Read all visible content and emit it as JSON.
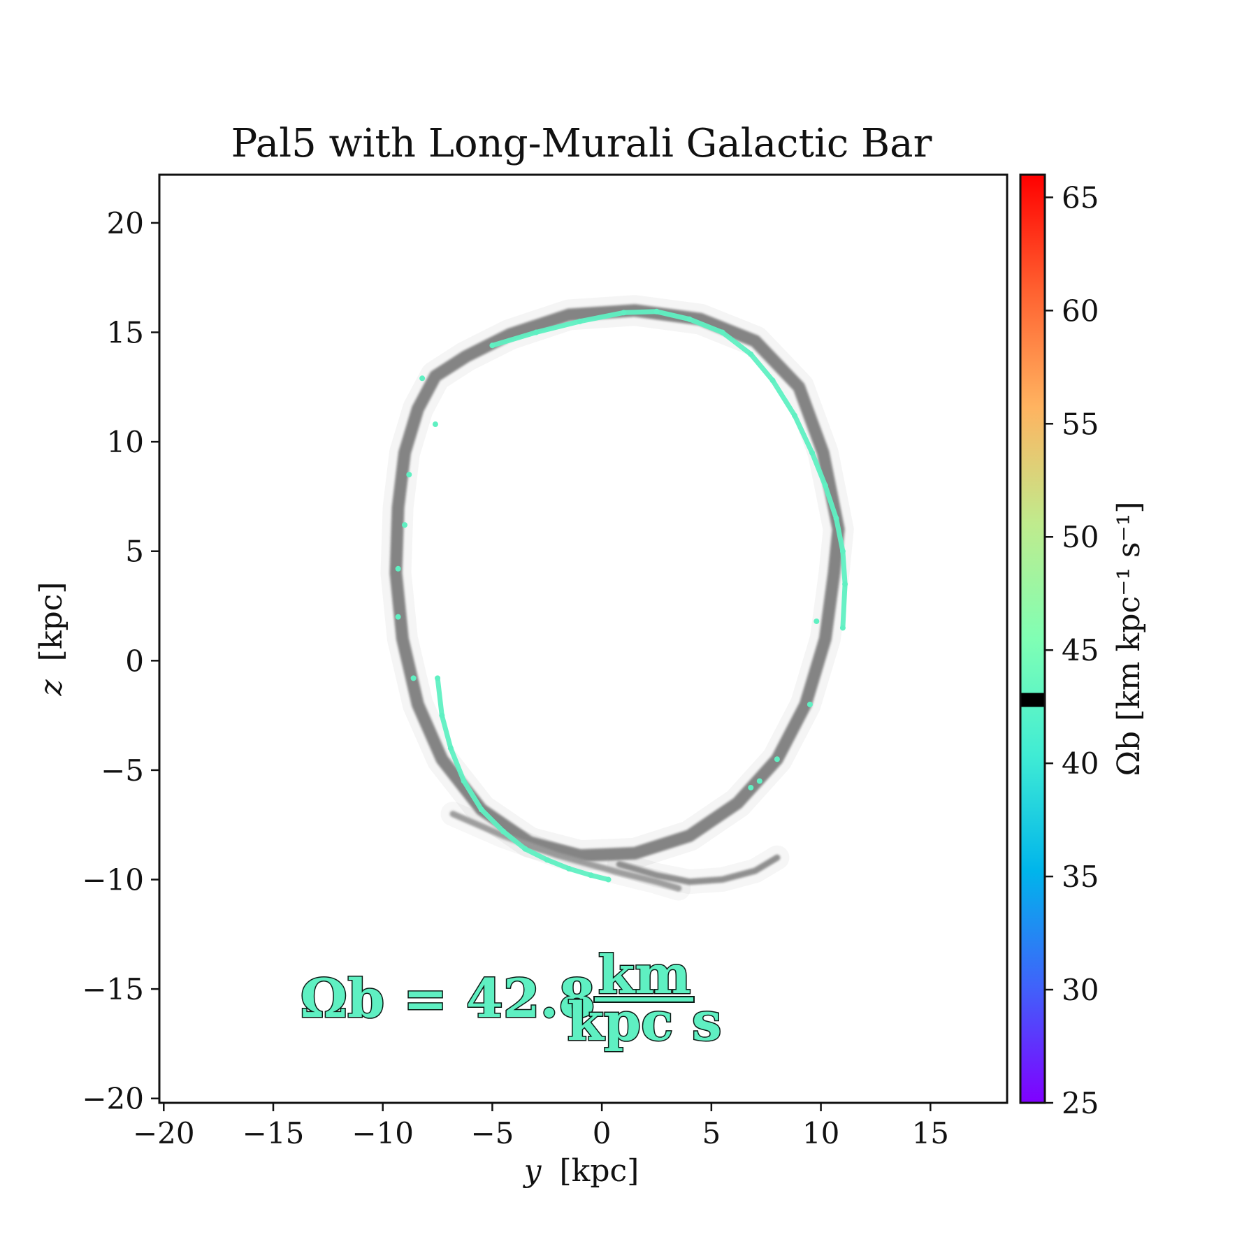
{
  "chart_data": {
    "type": "scatter",
    "title": "Pal5 with Long-Murali Galactic Bar",
    "xlabel_var": "y",
    "xlabel_unit": "[kpc]",
    "ylabel_var": "z",
    "ylabel_unit": "[kpc]",
    "xlim": [
      -20.2,
      18.5
    ],
    "ylim": [
      -20.2,
      22.2
    ],
    "xticks": [
      -20,
      -15,
      -10,
      -5,
      0,
      5,
      10,
      15
    ],
    "yticks": [
      -20,
      -15,
      -10,
      -5,
      0,
      5,
      10,
      15,
      20
    ],
    "grid": false,
    "colorbar": {
      "label_text": "Ωb [km kpc⁻¹ s⁻¹]",
      "min": 25,
      "max": 66,
      "ticks": [
        25,
        30,
        35,
        40,
        45,
        50,
        55,
        60,
        65
      ],
      "colormap": "rainbow",
      "marker_value": 42.8,
      "marker_color": "#000000"
    },
    "annotation": {
      "lhs": "Ωb = 42.8",
      "numerator": "km",
      "denominator": "kpc s",
      "color": "#5ff0c2"
    },
    "series": [
      {
        "role": "reference orbit stream",
        "color": "#7f7f7f",
        "points": [
          [
            -7.6,
            13.0
          ],
          [
            -8.4,
            11.5
          ],
          [
            -9.0,
            9.5
          ],
          [
            -9.3,
            7.0
          ],
          [
            -9.4,
            4.0
          ],
          [
            -9.1,
            1.0
          ],
          [
            -8.4,
            -2.0
          ],
          [
            -7.3,
            -4.5
          ],
          [
            -5.5,
            -6.8
          ],
          [
            -3.3,
            -8.3
          ],
          [
            -1.0,
            -8.9
          ],
          [
            1.5,
            -8.8
          ],
          [
            4.0,
            -8.0
          ],
          [
            6.2,
            -6.5
          ],
          [
            8.0,
            -4.5
          ],
          [
            9.3,
            -2.0
          ],
          [
            10.2,
            1.0
          ],
          [
            10.6,
            4.0
          ],
          [
            10.8,
            6.0
          ],
          [
            10.1,
            9.5
          ],
          [
            9.0,
            12.5
          ],
          [
            7.0,
            14.6
          ],
          [
            4.5,
            15.6
          ],
          [
            1.5,
            16.0
          ],
          [
            -1.5,
            15.8
          ],
          [
            -4.2,
            14.9
          ],
          [
            -6.2,
            13.9
          ],
          [
            -7.6,
            13.0
          ]
        ]
      },
      {
        "role": "lower tail",
        "color": "#9a9a9a",
        "points": [
          [
            -6.8,
            -7.0
          ],
          [
            -4.5,
            -8.0
          ],
          [
            -2.0,
            -8.9
          ],
          [
            0.5,
            -9.6
          ],
          [
            2.5,
            -10.1
          ],
          [
            3.5,
            -10.4
          ]
        ]
      },
      {
        "role": "lower arc",
        "color": "#8a8a8a",
        "points": [
          [
            0.8,
            -9.3
          ],
          [
            2.5,
            -9.8
          ],
          [
            4.0,
            -10.1
          ],
          [
            5.5,
            -10.0
          ],
          [
            7.0,
            -9.6
          ],
          [
            8.0,
            -9.0
          ]
        ]
      },
      {
        "role": "Pal5 stream (Ωb = 42.8)",
        "color": "#5ff0c2",
        "points": [
          [
            -5.0,
            14.4
          ],
          [
            -3.0,
            15.0
          ],
          [
            -1.0,
            15.5
          ],
          [
            1.0,
            15.9
          ],
          [
            2.5,
            15.95
          ],
          [
            4.0,
            15.6
          ],
          [
            5.5,
            15.0
          ],
          [
            6.8,
            14.0
          ],
          [
            7.8,
            12.8
          ],
          [
            8.8,
            11.2
          ],
          [
            9.6,
            9.5
          ],
          [
            10.2,
            8.0
          ],
          [
            10.7,
            6.5
          ],
          [
            11.0,
            5.0
          ],
          [
            11.1,
            3.5
          ],
          [
            11.0,
            1.5
          ]
        ]
      },
      {
        "role": "Pal5 stream lower arm (Ωb = 42.8)",
        "color": "#5ff0c2",
        "points": [
          [
            -7.5,
            -0.8
          ],
          [
            -7.3,
            -2.5
          ],
          [
            -6.9,
            -4.0
          ],
          [
            -6.3,
            -5.5
          ],
          [
            -5.5,
            -6.8
          ],
          [
            -4.5,
            -7.8
          ],
          [
            -3.5,
            -8.6
          ],
          [
            -2.5,
            -9.1
          ],
          [
            -1.5,
            -9.5
          ],
          [
            -0.5,
            -9.8
          ],
          [
            0.3,
            -10.0
          ]
        ]
      },
      {
        "role": "Pal5 stream left scatter (Ωb = 42.8)",
        "color": "#5ff0c2",
        "points": [
          [
            -8.2,
            12.9
          ],
          [
            -7.6,
            10.8
          ],
          [
            -8.8,
            8.5
          ],
          [
            -9.0,
            6.2
          ],
          [
            -9.3,
            4.2
          ],
          [
            -9.3,
            2.0
          ],
          [
            -8.6,
            -0.8
          ],
          [
            8.0,
            -4.5
          ],
          [
            7.2,
            -5.5
          ],
          [
            6.8,
            -5.8
          ],
          [
            9.8,
            1.8
          ],
          [
            9.5,
            -2.0
          ]
        ]
      }
    ]
  }
}
